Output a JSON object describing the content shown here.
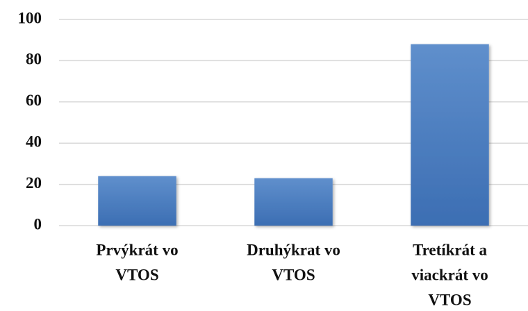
{
  "chart_data": {
    "type": "bar",
    "categories": [
      [
        "Prvýkrát vo",
        "VTOS"
      ],
      [
        "Druhýkrat vo",
        "VTOS"
      ],
      [
        "Tretíkrát a",
        "viackrát vo",
        "VTOS"
      ]
    ],
    "values": [
      24,
      23,
      88
    ],
    "color": "#4a7ebb",
    "ylim": [
      0,
      100
    ],
    "yticks": [
      0,
      20,
      40,
      60,
      80,
      100
    ],
    "grid": true
  }
}
